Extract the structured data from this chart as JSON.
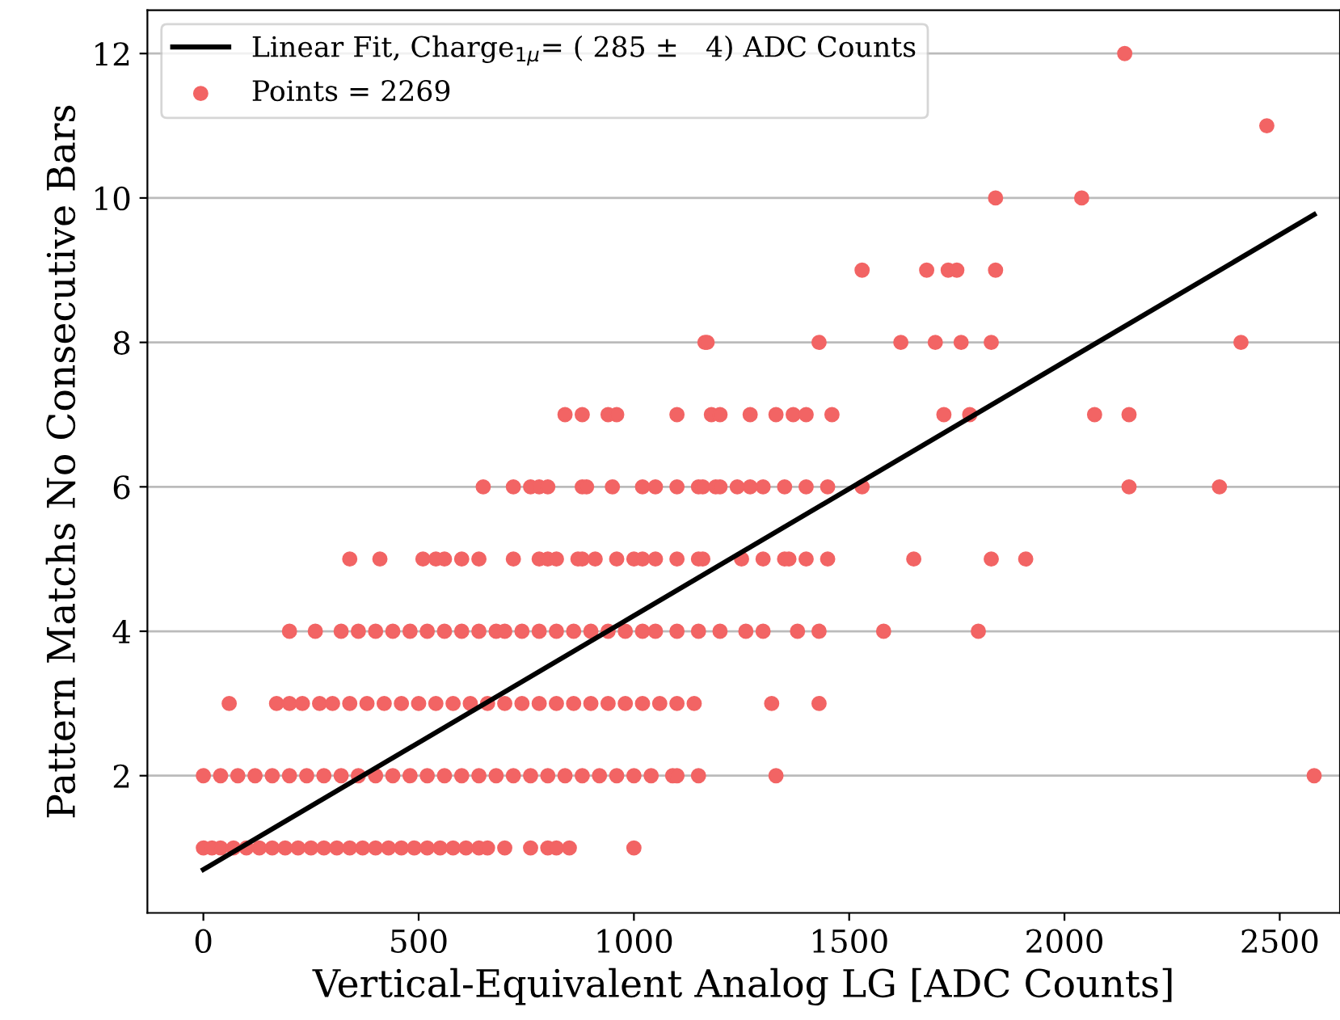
{
  "chart_data": {
    "type": "scatter",
    "xlabel": "Vertical-Equivalent Analog LG [ADC Counts]",
    "ylabel": "Pattern Matchs No Consecutive Bars",
    "xlim": [
      -130,
      2640
    ],
    "ylim": [
      0.1,
      12.6
    ],
    "xticks": [
      0,
      500,
      1000,
      1500,
      2000,
      2500
    ],
    "yticks": [
      2,
      4,
      6,
      8,
      10,
      12
    ],
    "grid": "y",
    "legend": "top left",
    "series": [
      {
        "name": "Linear Fit, Charge$_{1μ}$= ( 285 ±   4) ADC Counts",
        "type": "line",
        "color": "#000000",
        "marker": "none",
        "line_style": "solid",
        "x": [
          0,
          2580
        ],
        "values": [
          0.7,
          9.77
        ]
      },
      {
        "name": "Points = 2269",
        "type": "scatter",
        "color": "#f26464",
        "marker": "circle",
        "x": [
          2140,
          2470,
          1840,
          2040,
          1530,
          1680,
          1730,
          1750,
          1840,
          1165,
          1170,
          1430,
          1620,
          1700,
          1760,
          1830,
          2410,
          840,
          880,
          940,
          960,
          1100,
          1180,
          1200,
          1270,
          1330,
          1370,
          1400,
          1460,
          1720,
          1780,
          2070,
          2150,
          650,
          720,
          760,
          780,
          800,
          880,
          890,
          950,
          1020,
          1050,
          1100,
          1150,
          1160,
          1190,
          1200,
          1240,
          1270,
          1300,
          1350,
          1400,
          1450,
          1530,
          2150,
          2360,
          340,
          410,
          510,
          540,
          560,
          600,
          640,
          720,
          780,
          800,
          820,
          870,
          880,
          910,
          960,
          1000,
          1020,
          1050,
          1100,
          1150,
          1160,
          1250,
          1300,
          1350,
          1360,
          1400,
          1450,
          1650,
          1830,
          1910,
          200,
          260,
          320,
          360,
          400,
          440,
          480,
          520,
          560,
          600,
          640,
          680,
          700,
          740,
          780,
          820,
          860,
          900,
          940,
          980,
          1020,
          1050,
          1100,
          1150,
          1200,
          1260,
          1300,
          1380,
          1430,
          1580,
          1800,
          60,
          170,
          200,
          230,
          270,
          300,
          340,
          380,
          420,
          460,
          500,
          540,
          580,
          620,
          660,
          700,
          740,
          780,
          820,
          860,
          900,
          940,
          980,
          1020,
          1060,
          1100,
          1140,
          1320,
          1430,
          0,
          40,
          80,
          120,
          160,
          200,
          240,
          280,
          320,
          360,
          400,
          440,
          480,
          520,
          560,
          600,
          640,
          680,
          720,
          760,
          800,
          840,
          880,
          920,
          960,
          1000,
          1040,
          1090,
          1100,
          1150,
          1330,
          2580,
          0,
          20,
          40,
          70,
          100,
          130,
          160,
          190,
          220,
          250,
          280,
          310,
          340,
          370,
          400,
          430,
          460,
          490,
          520,
          550,
          580,
          610,
          640,
          660,
          700,
          760,
          800,
          820,
          850,
          1000
        ],
        "values": [
          12,
          11,
          10,
          10,
          9,
          9,
          9,
          9,
          9,
          8,
          8,
          8,
          8,
          8,
          8,
          8,
          8,
          7,
          7,
          7,
          7,
          7,
          7,
          7,
          7,
          7,
          7,
          7,
          7,
          7,
          7,
          7,
          7,
          6,
          6,
          6,
          6,
          6,
          6,
          6,
          6,
          6,
          6,
          6,
          6,
          6,
          6,
          6,
          6,
          6,
          6,
          6,
          6,
          6,
          6,
          6,
          6,
          5,
          5,
          5,
          5,
          5,
          5,
          5,
          5,
          5,
          5,
          5,
          5,
          5,
          5,
          5,
          5,
          5,
          5,
          5,
          5,
          5,
          5,
          5,
          5,
          5,
          5,
          5,
          5,
          5,
          5,
          4,
          4,
          4,
          4,
          4,
          4,
          4,
          4,
          4,
          4,
          4,
          4,
          4,
          4,
          4,
          4,
          4,
          4,
          4,
          4,
          4,
          4,
          4,
          4,
          4,
          4,
          4,
          4,
          4,
          4,
          4,
          3,
          3,
          3,
          3,
          3,
          3,
          3,
          3,
          3,
          3,
          3,
          3,
          3,
          3,
          3,
          3,
          3,
          3,
          3,
          3,
          3,
          3,
          3,
          3,
          3,
          3,
          3,
          3,
          3,
          2,
          2,
          2,
          2,
          2,
          2,
          2,
          2,
          2,
          2,
          2,
          2,
          2,
          2,
          2,
          2,
          2,
          2,
          2,
          2,
          2,
          2,
          2,
          2,
          2,
          2,
          2,
          2,
          2,
          2,
          2,
          2,
          1,
          1,
          1,
          1,
          1,
          1,
          1,
          1,
          1,
          1,
          1,
          1,
          1,
          1,
          1,
          1,
          1,
          1,
          1,
          1,
          1,
          1,
          1,
          1,
          1,
          1,
          1,
          1,
          1,
          1
        ]
      }
    ]
  }
}
